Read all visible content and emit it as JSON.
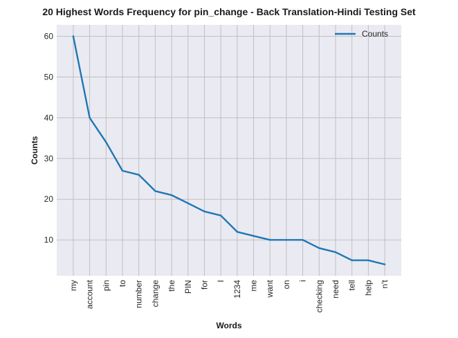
{
  "chart_data": {
    "type": "line",
    "title": "20 Highest Words Frequency for pin_change - Back Translation-Hindi Testing Set",
    "xlabel": "Words",
    "ylabel": "Counts",
    "categories": [
      "my",
      "account",
      "pin",
      "to",
      "number",
      "change",
      "the",
      "PIN",
      "for",
      "I",
      "1234",
      "me",
      "want",
      "on",
      "i",
      "checking",
      "need",
      "tell",
      "help",
      "n't"
    ],
    "series": [
      {
        "name": "Counts",
        "values": [
          60,
          40,
          34,
          27,
          26,
          22,
          21,
          19,
          17,
          16,
          12,
          11,
          10,
          10,
          10,
          8,
          7,
          5,
          5,
          4
        ],
        "color": "#1f77b4"
      }
    ],
    "ylim": [
      1.2,
      62.8
    ],
    "yticks": [
      10,
      20,
      30,
      40,
      50,
      60
    ],
    "grid": true,
    "legend_position": "top-right",
    "colors": {
      "plot_background": "#eaeaf2",
      "grid": "#c0c0c0",
      "line": "#1f77b4"
    }
  }
}
